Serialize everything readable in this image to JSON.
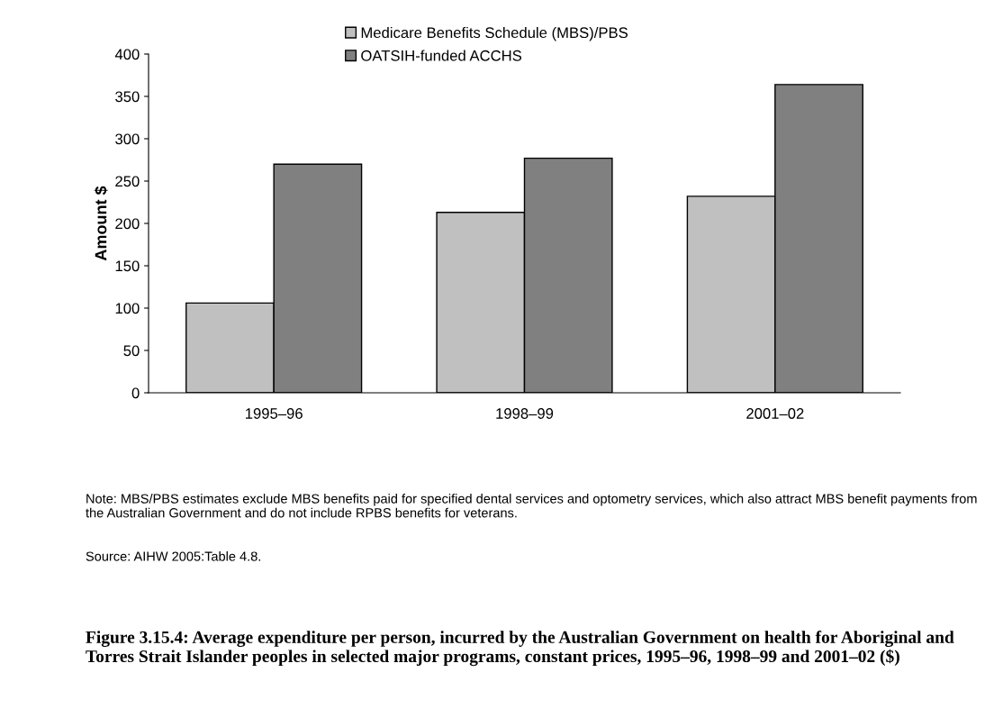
{
  "chart_data": {
    "type": "bar",
    "title": "Figure 3.15.4: Average expenditure per person, incurred by the Australian Government on health for Aboriginal and Torres Strait Islander peoples in selected major programs, constant prices, 1995–96, 1998–99 and 2001–02 ($)",
    "ylabel": "Amount $",
    "categories": [
      "1995–96",
      "1998–99",
      "2001–02"
    ],
    "series": [
      {
        "name": "Medicare Benefits Schedule (MBS)/PBS",
        "color": "#c0c0c0",
        "values": [
          106,
          213,
          232
        ]
      },
      {
        "name": "OATSIH-funded ACCHS",
        "color": "#808080",
        "values": [
          270,
          277,
          364
        ]
      }
    ],
    "ylim": [
      0,
      400
    ],
    "yticks": [
      0,
      50,
      100,
      150,
      200,
      250,
      300,
      350,
      400
    ],
    "grid": false,
    "legend": "top",
    "annotations": [
      "Note: MBS/PBS estimates exclude MBS benefits paid for specified dental services and optometry services, which also attract MBS benefit payments from the Australian Government and do not include RPBS benefits for veterans.",
      "Source: AIHW 2005:Table 4.8."
    ]
  }
}
